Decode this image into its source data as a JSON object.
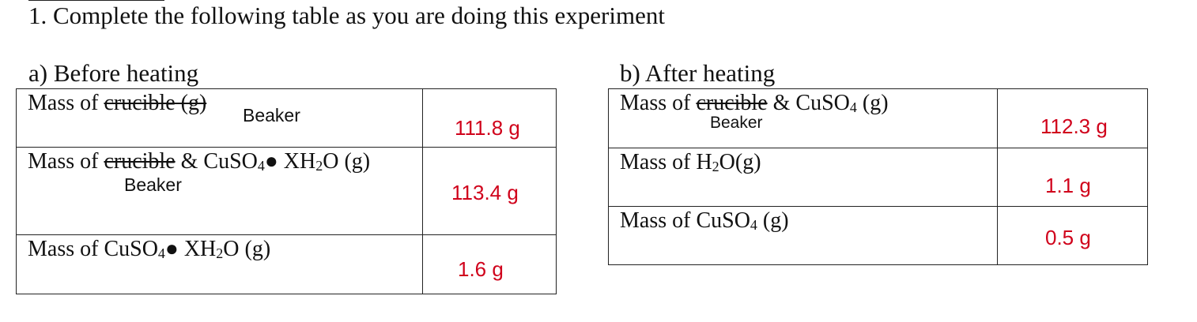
{
  "title": "1. Complete the following table as you are doing this experiment",
  "before": {
    "heading": "a) Before heating",
    "rows": [
      {
        "label": [
          "Mass of ",
          "crucible (g)"
        ],
        "note": "Beaker",
        "value": "111.8 g"
      },
      {
        "label": [
          "Mass of ",
          "crucible",
          " & CuSO",
          "4",
          "● XH",
          "2",
          "O (g)"
        ],
        "note": "Beaker",
        "value": "113.4 g"
      },
      {
        "label": [
          "Mass of CuSO",
          "4",
          "● XH",
          "2",
          "O (g)"
        ],
        "value": "1.6 g"
      }
    ]
  },
  "after": {
    "heading": "b) After heating",
    "rows": [
      {
        "label": [
          "Mass of ",
          "crucible",
          " & CuSO",
          "4",
          " (g)"
        ],
        "note": "Beaker",
        "value": "112.3 g"
      },
      {
        "label": [
          "Mass of H",
          "2",
          "O(g)"
        ],
        "value": "1.1 g"
      },
      {
        "label": [
          "Mass of CuSO",
          "4",
          " (g)"
        ],
        "value": "0.5 g"
      }
    ]
  }
}
